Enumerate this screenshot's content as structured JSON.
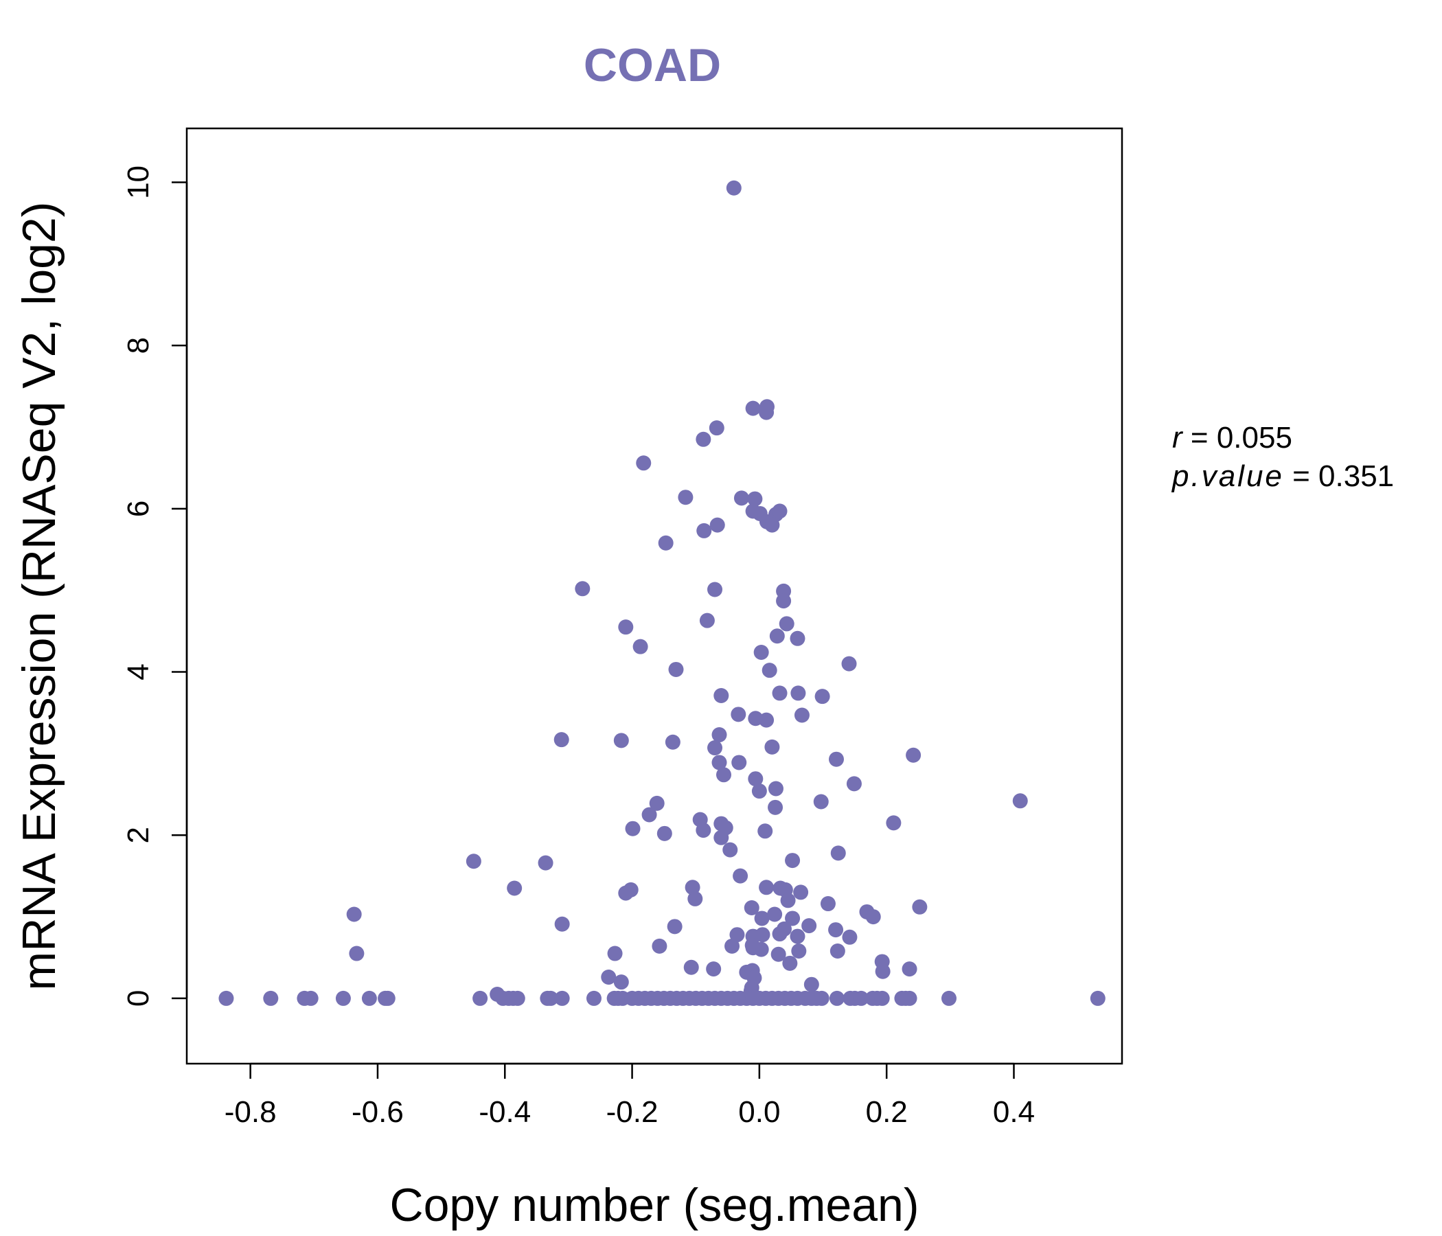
{
  "colors": {
    "point": "#7570b3",
    "title": "#7570b3",
    "axis": "#000000"
  },
  "chart_data": {
    "type": "scatter",
    "title": "COAD",
    "xlabel": "Copy number (seg.mean)",
    "ylabel": "mRNA Expression (RNASeq V2, log2)",
    "xlim": [
      -0.9,
      0.57
    ],
    "ylim": [
      -0.8,
      10.66
    ],
    "x_ticks": [
      -0.8,
      -0.6,
      -0.4,
      -0.2,
      0.0,
      0.2,
      0.4
    ],
    "x_tick_labels": [
      "-0.8",
      "-0.6",
      "-0.4",
      "-0.2",
      "0.0",
      "0.2",
      "0.4"
    ],
    "y_ticks": [
      0,
      2,
      4,
      6,
      8,
      10
    ],
    "y_tick_labels": [
      "0",
      "2",
      "4",
      "6",
      "8",
      "10"
    ],
    "annotations": {
      "r_label": "r",
      "r_value": "0.055",
      "p_label": "p.value",
      "p_value": "0.351"
    },
    "points": [
      [
        -0.04,
        9.93
      ],
      [
        -0.01,
        7.23
      ],
      [
        0.012,
        7.25
      ],
      [
        0.011,
        7.18
      ],
      [
        -0.067,
        6.99
      ],
      [
        -0.088,
        6.85
      ],
      [
        -0.182,
        6.56
      ],
      [
        -0.116,
        6.14
      ],
      [
        -0.028,
        6.13
      ],
      [
        -0.007,
        6.12
      ],
      [
        -0.01,
        5.97
      ],
      [
        0.001,
        5.94
      ],
      [
        0.026,
        5.93
      ],
      [
        0.032,
        5.97
      ],
      [
        0.012,
        5.84
      ],
      [
        0.02,
        5.8
      ],
      [
        -0.066,
        5.8
      ],
      [
        -0.087,
        5.73
      ],
      [
        -0.147,
        5.58
      ],
      [
        -0.278,
        5.02
      ],
      [
        -0.07,
        5.01
      ],
      [
        0.038,
        4.99
      ],
      [
        0.038,
        4.87
      ],
      [
        -0.082,
        4.63
      ],
      [
        0.043,
        4.59
      ],
      [
        -0.21,
        4.55
      ],
      [
        0.028,
        4.44
      ],
      [
        0.06,
        4.41
      ],
      [
        -0.187,
        4.31
      ],
      [
        0.003,
        4.24
      ],
      [
        0.016,
        4.02
      ],
      [
        -0.131,
        4.03
      ],
      [
        0.141,
        4.1
      ],
      [
        -0.06,
        3.71
      ],
      [
        0.032,
        3.74
      ],
      [
        0.061,
        3.74
      ],
      [
        0.099,
        3.7
      ],
      [
        -0.033,
        3.48
      ],
      [
        -0.006,
        3.43
      ],
      [
        0.011,
        3.41
      ],
      [
        0.067,
        3.47
      ],
      [
        -0.063,
        3.23
      ],
      [
        -0.311,
        3.17
      ],
      [
        -0.217,
        3.16
      ],
      [
        -0.136,
        3.14
      ],
      [
        -0.07,
        3.07
      ],
      [
        0.02,
        3.08
      ],
      [
        0.121,
        2.93
      ],
      [
        0.242,
        2.98
      ],
      [
        -0.063,
        2.89
      ],
      [
        -0.032,
        2.89
      ],
      [
        -0.056,
        2.74
      ],
      [
        -0.006,
        2.69
      ],
      [
        0.026,
        2.57
      ],
      [
        0.149,
        2.63
      ],
      [
        0.0,
        2.54
      ],
      [
        0.025,
        2.34
      ],
      [
        -0.161,
        2.39
      ],
      [
        -0.173,
        2.25
      ],
      [
        0.097,
        2.41
      ],
      [
        0.41,
        2.42
      ],
      [
        -0.093,
        2.19
      ],
      [
        -0.06,
        2.14
      ],
      [
        -0.053,
        2.09
      ],
      [
        -0.199,
        2.08
      ],
      [
        -0.088,
        2.06
      ],
      [
        -0.149,
        2.02
      ],
      [
        0.009,
        2.05
      ],
      [
        0.211,
        2.15
      ],
      [
        -0.06,
        1.97
      ],
      [
        -0.046,
        1.82
      ],
      [
        0.124,
        1.78
      ],
      [
        -0.449,
        1.68
      ],
      [
        -0.336,
        1.66
      ],
      [
        0.052,
        1.69
      ],
      [
        -0.03,
        1.5
      ],
      [
        0.011,
        1.36
      ],
      [
        0.033,
        1.35
      ],
      [
        0.041,
        1.33
      ],
      [
        -0.385,
        1.35
      ],
      [
        -0.105,
        1.36
      ],
      [
        -0.202,
        1.33
      ],
      [
        -0.21,
        1.29
      ],
      [
        0.065,
        1.3
      ],
      [
        -0.101,
        1.22
      ],
      [
        0.045,
        1.2
      ],
      [
        0.108,
        1.16
      ],
      [
        0.252,
        1.12
      ],
      [
        -0.012,
        1.11
      ],
      [
        0.169,
        1.06
      ],
      [
        0.179,
        1.0
      ],
      [
        -0.637,
        1.03
      ],
      [
        0.024,
        1.03
      ],
      [
        0.004,
        0.98
      ],
      [
        0.052,
        0.98
      ],
      [
        -0.31,
        0.91
      ],
      [
        -0.133,
        0.88
      ],
      [
        0.078,
        0.89
      ],
      [
        0.039,
        0.85
      ],
      [
        0.12,
        0.84
      ],
      [
        0.032,
        0.79
      ],
      [
        0.005,
        0.78
      ],
      [
        -0.035,
        0.78
      ],
      [
        -0.01,
        0.76
      ],
      [
        0.06,
        0.76
      ],
      [
        0.142,
        0.75
      ],
      [
        -0.157,
        0.64
      ],
      [
        -0.043,
        0.64
      ],
      [
        -0.01,
        0.62
      ],
      [
        0.003,
        0.6
      ],
      [
        -0.011,
        0.65
      ],
      [
        0.03,
        0.54
      ],
      [
        0.062,
        0.58
      ],
      [
        0.123,
        0.58
      ],
      [
        -0.633,
        0.55
      ],
      [
        -0.227,
        0.55
      ],
      [
        0.048,
        0.43
      ],
      [
        0.193,
        0.45
      ],
      [
        -0.107,
        0.38
      ],
      [
        -0.072,
        0.36
      ],
      [
        0.236,
        0.36
      ],
      [
        -0.02,
        0.32
      ],
      [
        -0.011,
        0.34
      ],
      [
        0.194,
        0.33
      ],
      [
        -0.237,
        0.26
      ],
      [
        -0.008,
        0.25
      ],
      [
        -0.217,
        0.2
      ],
      [
        0.082,
        0.17
      ],
      [
        -0.412,
        0.05
      ],
      [
        -0.012,
        0.13
      ],
      [
        -0.013,
        0.09
      ],
      [
        -0.838,
        0
      ],
      [
        -0.768,
        0
      ],
      [
        -0.715,
        0
      ],
      [
        -0.705,
        0
      ],
      [
        -0.654,
        0
      ],
      [
        -0.613,
        0
      ],
      [
        -0.588,
        0
      ],
      [
        -0.584,
        0
      ],
      [
        -0.439,
        0
      ],
      [
        -0.403,
        0
      ],
      [
        -0.394,
        0
      ],
      [
        -0.387,
        0
      ],
      [
        -0.38,
        0
      ],
      [
        -0.333,
        0
      ],
      [
        -0.328,
        0
      ],
      [
        -0.31,
        0
      ],
      [
        -0.26,
        0
      ],
      [
        -0.228,
        0
      ],
      [
        -0.222,
        0
      ],
      [
        -0.215,
        0
      ],
      [
        -0.2,
        0
      ],
      [
        -0.19,
        0
      ],
      [
        -0.18,
        0
      ],
      [
        -0.17,
        0
      ],
      [
        -0.16,
        0
      ],
      [
        -0.15,
        0
      ],
      [
        -0.14,
        0
      ],
      [
        -0.13,
        0
      ],
      [
        -0.12,
        0
      ],
      [
        -0.11,
        0
      ],
      [
        -0.1,
        0
      ],
      [
        -0.09,
        0
      ],
      [
        -0.08,
        0
      ],
      [
        -0.07,
        0
      ],
      [
        -0.06,
        0
      ],
      [
        -0.05,
        0
      ],
      [
        -0.04,
        0
      ],
      [
        -0.03,
        0
      ],
      [
        -0.02,
        0
      ],
      [
        -0.01,
        0
      ],
      [
        0.0,
        0
      ],
      [
        0.01,
        0
      ],
      [
        0.02,
        0
      ],
      [
        0.03,
        0
      ],
      [
        0.04,
        0
      ],
      [
        0.05,
        0
      ],
      [
        0.06,
        0
      ],
      [
        0.072,
        0
      ],
      [
        0.082,
        0
      ],
      [
        0.09,
        0
      ],
      [
        0.098,
        0
      ],
      [
        0.122,
        0
      ],
      [
        0.143,
        0
      ],
      [
        0.15,
        0
      ],
      [
        0.16,
        0
      ],
      [
        0.178,
        0
      ],
      [
        0.185,
        0
      ],
      [
        0.193,
        0
      ],
      [
        0.224,
        0
      ],
      [
        0.23,
        0
      ],
      [
        0.236,
        0
      ],
      [
        0.298,
        0
      ],
      [
        0.532,
        0
      ]
    ]
  }
}
